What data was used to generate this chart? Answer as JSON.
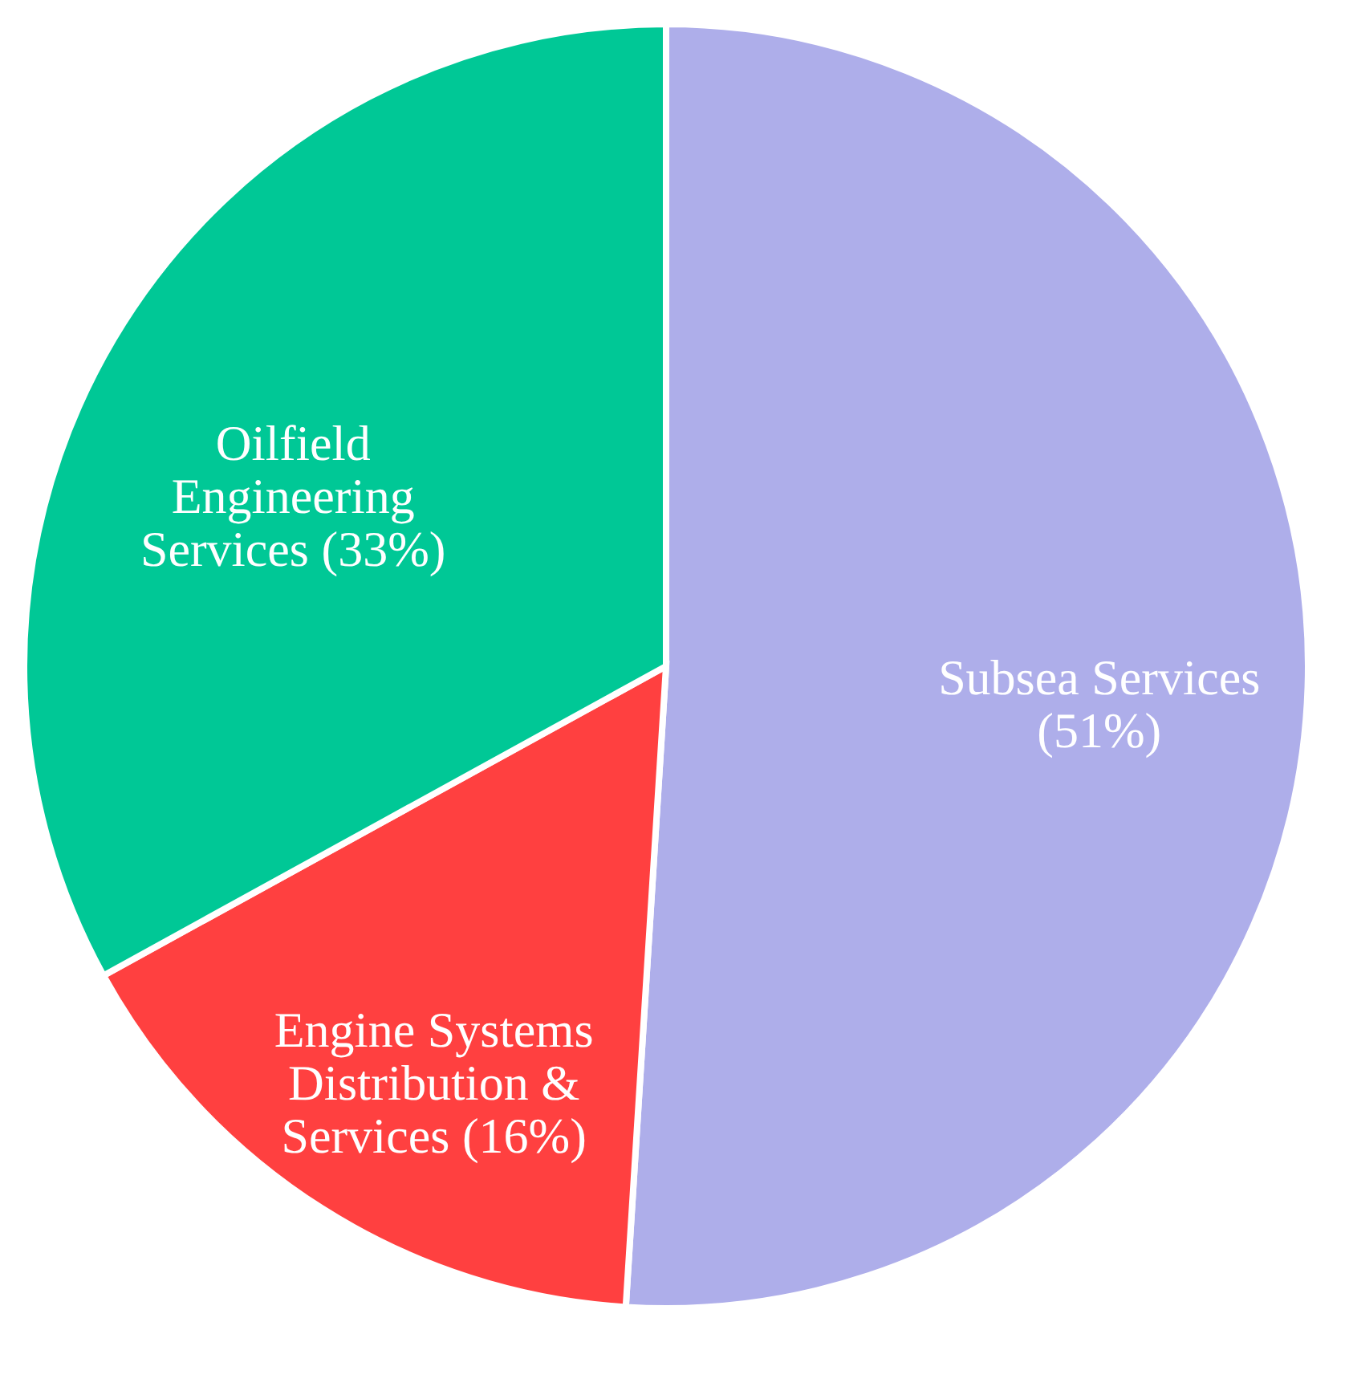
{
  "chart_data": {
    "type": "pie",
    "categories": [
      "Subsea Services",
      "Engine Systems Distribution &",
      "Oilfield Engineering Services"
    ],
    "values": [
      51,
      16,
      33
    ],
    "value_labels": [
      "(51%)",
      "Services (16%)",
      "(33%)"
    ],
    "colors": [
      "#aeaeea",
      "#ff4040",
      "#00c896"
    ],
    "legend": false
  }
}
